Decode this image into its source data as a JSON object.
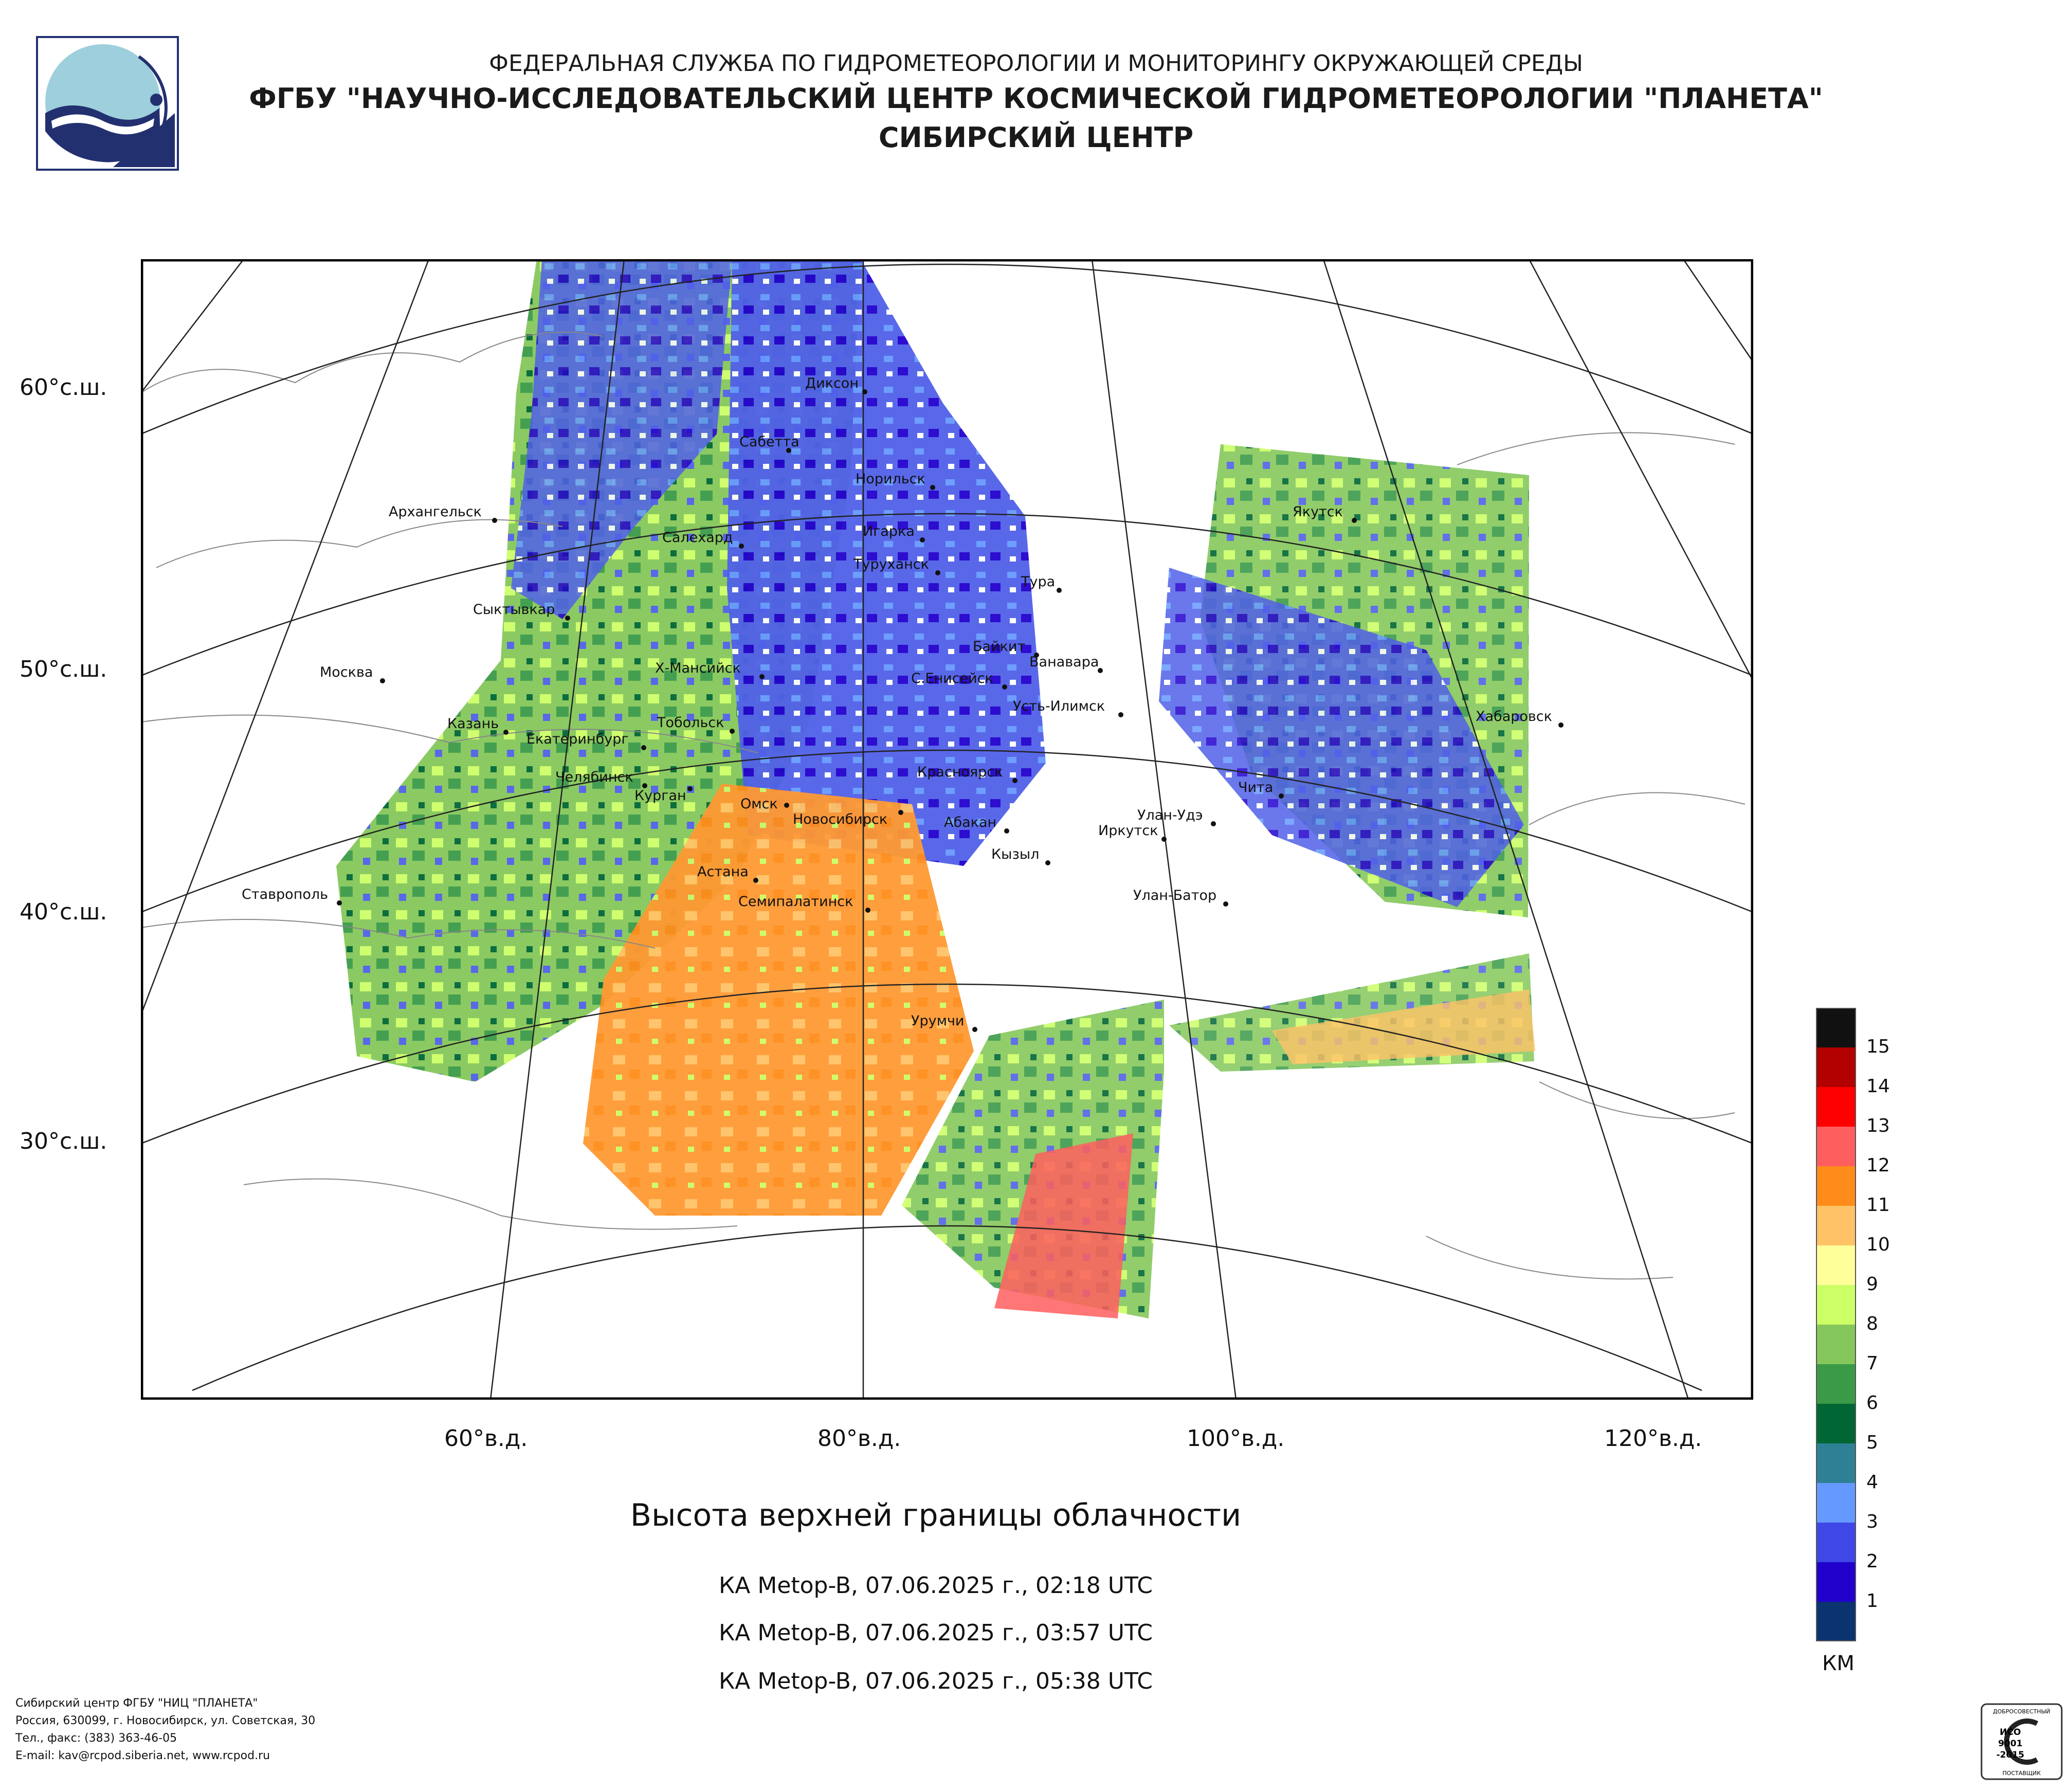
{
  "header": {
    "line1": "ФЕДЕРАЛЬНАЯ СЛУЖБА ПО ГИДРОМЕТЕОРОЛОГИИ И МОНИТОРИНГУ ОКРУЖАЮЩЕЙ СРЕДЫ",
    "line2": "ФГБУ \"НАУЧНО-ИССЛЕДОВАТЕЛЬСКИЙ ЦЕНТР КОСМИЧЕСКОЙ ГИДРОМЕТЕОРОЛОГИИ \"ПЛАНЕТА\"",
    "line3": "СИБИРСКИЙ ЦЕНТР"
  },
  "map": {
    "latitude_labels": [
      "60°с.ш.",
      "50°с.ш.",
      "40°с.ш.",
      "30°с.ш."
    ],
    "longitude_labels": [
      "60°в.д.",
      "80°в.д.",
      "100°в.д.",
      "120°в.д."
    ],
    "cities": [
      {
        "name": "Диксон"
      },
      {
        "name": "Сабетта"
      },
      {
        "name": "Норильск"
      },
      {
        "name": "Архангельск"
      },
      {
        "name": "Салехард"
      },
      {
        "name": "Игарка"
      },
      {
        "name": "Туруханск"
      },
      {
        "name": "Тура"
      },
      {
        "name": "Якутск"
      },
      {
        "name": "Сыктывкар"
      },
      {
        "name": "Байкит"
      },
      {
        "name": "Ванавара"
      },
      {
        "name": "Москва"
      },
      {
        "name": "Х-Мансийск"
      },
      {
        "name": "С.Енисейск"
      },
      {
        "name": "Усть-Илимск"
      },
      {
        "name": "Хабаровск"
      },
      {
        "name": "Казань"
      },
      {
        "name": "Тобольск"
      },
      {
        "name": "Екатеринбург"
      },
      {
        "name": "Красноярск"
      },
      {
        "name": "Челябинск"
      },
      {
        "name": "Курган"
      },
      {
        "name": "Омск"
      },
      {
        "name": "Чита"
      },
      {
        "name": "Новосибирск"
      },
      {
        "name": "Абакан"
      },
      {
        "name": "Улан-Удэ"
      },
      {
        "name": "Иркутск"
      },
      {
        "name": "Кызыл"
      },
      {
        "name": "Астана"
      },
      {
        "name": "Ставрополь"
      },
      {
        "name": "Улан-Батор"
      },
      {
        "name": "Семипалатинск"
      },
      {
        "name": "Урумчи"
      }
    ]
  },
  "title": "Высота верхней границы облачности",
  "passes": [
    "КА Metop-B, 07.06.2025 г., 02:18 UTC",
    "КА Metop-B, 07.06.2025 г., 03:57 UTC",
    "КА Metop-B, 07.06.2025 г., 05:38 UTC"
  ],
  "legend": {
    "unit": "КМ",
    "levels": [
      {
        "label": "15",
        "color": "#111111"
      },
      {
        "label": "14",
        "color": "#b30000"
      },
      {
        "label": "13",
        "color": "#ff0000"
      },
      {
        "label": "12",
        "color": "#ff5e5e"
      },
      {
        "label": "11",
        "color": "#ff8c1a"
      },
      {
        "label": "10",
        "color": "#ffc266"
      },
      {
        "label": "9",
        "color": "#ffff99"
      },
      {
        "label": "8",
        "color": "#ccff66"
      },
      {
        "label": "7",
        "color": "#85c75a"
      },
      {
        "label": "6",
        "color": "#3a9a48"
      },
      {
        "label": "5",
        "color": "#006633"
      },
      {
        "label": "4",
        "color": "#2e8095"
      },
      {
        "label": "3",
        "color": "#6699ff"
      },
      {
        "label": "2",
        "color": "#3f48e6"
      },
      {
        "label": "1",
        "color": "#2200cc"
      },
      {
        "label": "",
        "color": "#0a3370"
      }
    ]
  },
  "footer": {
    "line1": "Сибирский центр ФГБУ \"НИЦ \"ПЛАНЕТА\"",
    "line2": "Россия, 630099, г. Новосибирск, ул. Советская, 30",
    "line3": "Тел., факс: (383) 363-46-05",
    "line4": "E-mail: kav@rcpod.siberia.net, www.rcpod.ru"
  },
  "iso_badge": {
    "top_text": "ДОБРОСОВЕСТНЫЙ",
    "line1": "ИСО",
    "line2": "9001",
    "line3": "-2015",
    "bottom_text": "ПОСТАВЩИК"
  }
}
